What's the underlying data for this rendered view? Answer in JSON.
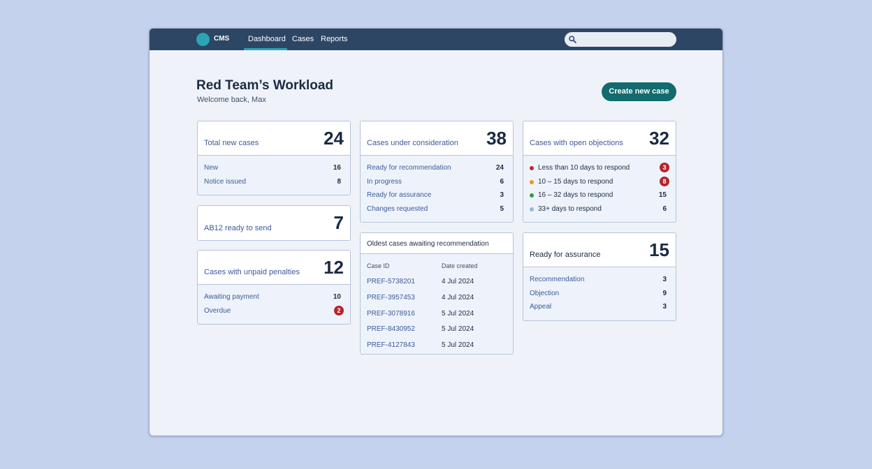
{
  "app": {
    "name": "CMS"
  },
  "nav": [
    "Dashboard",
    "Cases",
    "Reports"
  ],
  "search": {
    "placeholder": ""
  },
  "header": {
    "title": "Red Team’s Workload",
    "subtitle": "Welcome back, Max",
    "create_button": "Create new case"
  },
  "cards": {
    "total_new": {
      "title": "Total new cases",
      "count": "24",
      "rows": [
        {
          "label": "New",
          "value": "16"
        },
        {
          "label": "Notice issued",
          "value": "8"
        }
      ]
    },
    "ab12": {
      "title": "AB12 ready to send",
      "count": "7"
    },
    "unpaid": {
      "title": "Cases with unpaid penalties",
      "count": "12",
      "rows": [
        {
          "label": "Awaiting payment",
          "value": "10"
        },
        {
          "label": "Overdue",
          "value": "2"
        }
      ]
    },
    "consideration": {
      "title": "Cases under consideration",
      "count": "38",
      "rows": [
        {
          "label": "Ready for recommendation",
          "value": "24"
        },
        {
          "label": "In progress",
          "value": "6"
        },
        {
          "label": "Ready for assurance",
          "value": "3"
        },
        {
          "label": "Changes requested",
          "value": "5"
        }
      ]
    },
    "objections": {
      "title": "Cases with open objections",
      "count": "32",
      "rows": [
        {
          "label": "Less than 10 days to respond",
          "value": "3",
          "color": "#c0262d"
        },
        {
          "label": "10 – 15 days to respond",
          "value": "8",
          "color": "#e8972a"
        },
        {
          "label": "16 – 32 days to respond",
          "value": "15",
          "color": "#2f9d3a"
        },
        {
          "label": "33+ days to respond",
          "value": "6",
          "color": "#8fb6e6"
        }
      ]
    },
    "assurance": {
      "title": "Ready for assurance",
      "count": "15",
      "rows": [
        {
          "label": "Recommendation",
          "value": "3"
        },
        {
          "label": "Objection",
          "value": "9"
        },
        {
          "label": "Appeal",
          "value": "3"
        }
      ]
    },
    "oldest": {
      "title": "Oldest cases awaiting recommendation",
      "columns": [
        "Case ID",
        "Date created"
      ],
      "rows": [
        {
          "id": "PREF-5738201",
          "date": "4 Jul 2024"
        },
        {
          "id": "PREF-3957453",
          "date": "4 Jul 2024"
        },
        {
          "id": "PREF-3078916",
          "date": "5 Jul 2024"
        },
        {
          "id": "PREF-8430952",
          "date": "5 Jul 2024"
        },
        {
          "id": "PREF-4127843",
          "date": "5 Jul 2024"
        }
      ]
    }
  },
  "colors": {
    "topbar": "#2d4664",
    "accent": "#2ba4b5",
    "primary_button": "#126b6e",
    "alert": "#b5252d"
  }
}
